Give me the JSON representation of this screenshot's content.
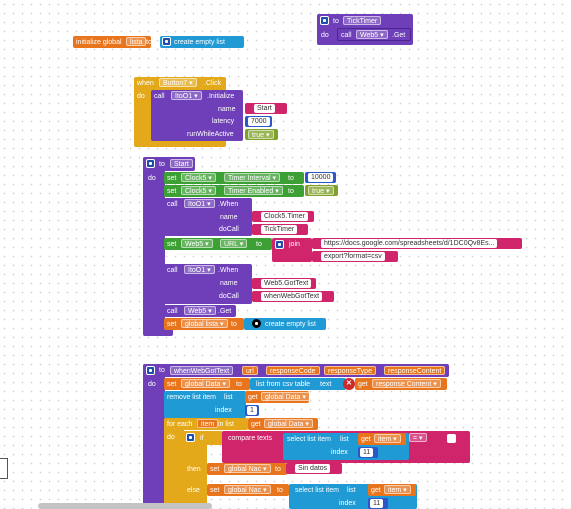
{
  "global_init": {
    "initialize_global": "initialize global",
    "var_name": "lista",
    "to": "to",
    "create_empty_list": "create empty list"
  },
  "tick_timer": {
    "to": "to",
    "proc_name": "TickTimer",
    "do": "do",
    "call": "call",
    "component": "Web5",
    "method": ".Get"
  },
  "button7_click": {
    "when": "when",
    "component": "Button7",
    "event": ".Click",
    "do": "do",
    "call": "call",
    "call_component": "ItoO1",
    "call_method": ".Initialize",
    "name_label": "name",
    "name_value": "Start",
    "latency_label": "latency",
    "latency_value": "7000",
    "run_label": "runWhileActive",
    "run_value": "true"
  },
  "start_proc": {
    "to": "to",
    "proc_name": "Start",
    "do": "do",
    "set1": {
      "set": "set",
      "component": "Clock5",
      "prop": "Timer Interval",
      "to": "to",
      "value": "10000"
    },
    "set2": {
      "set": "set",
      "component": "Clock5",
      "prop": "Timer Enabled",
      "to": "to",
      "value": "true"
    },
    "when1": {
      "call": "call",
      "component": "ItoO1",
      "method": ".When",
      "name_label": "name",
      "name_value": "Clock5.Timer",
      "docall_label": "doCall",
      "docall_value": "TickTimer"
    },
    "set_url": {
      "set": "set",
      "component": "Web5",
      "prop": "URL",
      "to": "to",
      "join": "join",
      "part1": "https://docs.google.com/spreadsheets/d/1DC0Qv8Es...",
      "part2": "export?format=csv"
    },
    "when2": {
      "call": "call",
      "component": "ItoO1",
      "method": ".When",
      "name_label": "name",
      "name_value": "Web5.GotText",
      "docall_label": "doCall",
      "docall_value": "whenWebGotText"
    },
    "get_call": {
      "call": "call",
      "component": "Web5",
      "method": ".Get"
    },
    "set_lista": {
      "set": "set",
      "var": "global lista",
      "to": "to",
      "create_empty_list": "create empty list"
    }
  },
  "got_text_proc": {
    "to": "to",
    "proc_name": "whenWebGotText",
    "params": [
      "url",
      "responseCode",
      "responseType",
      "responseContent"
    ],
    "do": "do",
    "set_data": {
      "set": "set",
      "var": "global Data",
      "to": "to",
      "list_from_csv": "list from csv table",
      "text": "text",
      "get": "get",
      "get_var": "response Content"
    },
    "remove": {
      "label": "remove list item",
      "list": "list",
      "get": "get",
      "get_var": "global Data",
      "index": "index",
      "index_value": "1"
    },
    "foreach": {
      "for_each": "for each",
      "item": "item",
      "in_list": "in list",
      "get": "get",
      "get_var": "global Data",
      "do": "do"
    },
    "if_block": {
      "if": "if",
      "compare": "compare texts",
      "select": "select list item",
      "list": "list",
      "get": "get",
      "get_item": "item",
      "op": "=",
      "str": "",
      "index": "index",
      "index_value": "11",
      "then": "then",
      "then_set": "set",
      "then_var": "global Nac",
      "then_to": "to",
      "then_value": "Sin datos",
      "else": "else",
      "else_set": "set",
      "else_var": "global Nac",
      "else_to": "to",
      "else_select": "select list item",
      "else_list": "list",
      "else_get": "get",
      "else_item": "item",
      "else_index": "index",
      "else_index_value": "11"
    }
  },
  "colors": {
    "events": "#e3a91b",
    "procedures": "#6e3fb8",
    "components": "#3da035",
    "text": "#d0246b",
    "variables": "#e8741c",
    "lists": "#1f9ad4",
    "math": "#2d56c8"
  }
}
